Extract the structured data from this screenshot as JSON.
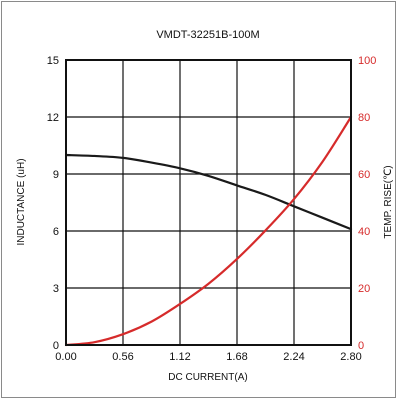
{
  "chart_data": {
    "type": "line",
    "title": "VMDT-32251B-100M",
    "xlabel": "DC CURRENT(A)",
    "ylabel_left": "INDUCTANCE (uH)",
    "ylabel_right": "TEMP. RISE(℃)",
    "x_ticks": [
      "0.00",
      "0.56",
      "1.12",
      "1.68",
      "2.24",
      "2.80"
    ],
    "y_left_ticks": [
      "0",
      "3",
      "6",
      "9",
      "12",
      "15"
    ],
    "y_right_ticks": [
      "0",
      "20",
      "40",
      "60",
      "80",
      "100"
    ],
    "xlim": [
      0,
      2.8
    ],
    "ylim_left": [
      0,
      15
    ],
    "ylim_right": [
      0,
      100
    ],
    "grid": true,
    "colors": {
      "inductance": "#1a1a1a",
      "temp_rise": "#d62b2b",
      "axis": "#111111",
      "right_axis": "#d62b2b"
    },
    "series": [
      {
        "axis": "left",
        "color": "#1a1a1a",
        "x": [
          0.0,
          0.28,
          0.56,
          0.84,
          1.12,
          1.4,
          1.68,
          1.96,
          2.24,
          2.52,
          2.8
        ],
        "y": [
          10.0,
          9.95,
          9.85,
          9.6,
          9.3,
          8.9,
          8.4,
          7.9,
          7.3,
          6.7,
          6.1
        ]
      },
      {
        "axis": "right",
        "color": "#d62b2b",
        "x": [
          0.0,
          0.28,
          0.56,
          0.84,
          1.12,
          1.4,
          1.68,
          1.96,
          2.24,
          2.52,
          2.8
        ],
        "y": [
          0,
          1,
          3.8,
          8.2,
          14.4,
          21.5,
          30.2,
          40.2,
          51.2,
          64.3,
          80
        ]
      }
    ]
  }
}
